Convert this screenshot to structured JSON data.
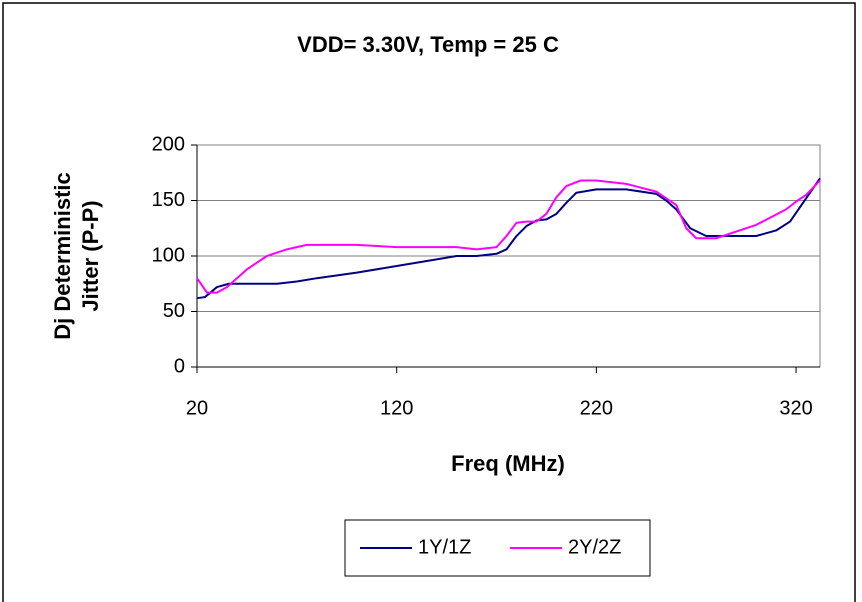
{
  "chart_data": {
    "type": "line",
    "title": "VDD= 3.30V, Temp = 25 C",
    "xlabel": "Freq (MHz)",
    "ylabel": [
      "Dj Deterministic",
      "Jitter (P-P)"
    ],
    "xlim": [
      20,
      332
    ],
    "xticks": [
      20,
      120,
      220,
      320
    ],
    "ylim": [
      0,
      200
    ],
    "yticks": [
      0,
      50,
      100,
      150,
      200
    ],
    "grid": true,
    "legend": "bottom",
    "series": [
      {
        "name": "1Y/1Z",
        "color": "#000080",
        "x": [
          20,
          24,
          30,
          36,
          50,
          60,
          70,
          80,
          100,
          120,
          140,
          150,
          160,
          170,
          175,
          180,
          185,
          190,
          195,
          200,
          205,
          210,
          220,
          235,
          250,
          255,
          260,
          267,
          275,
          290,
          300,
          310,
          317,
          332
        ],
        "values": [
          62,
          63,
          72,
          75,
          75,
          75,
          77,
          80,
          85,
          91,
          97,
          100,
          100,
          102,
          106,
          118,
          127,
          132,
          133,
          138,
          148,
          157,
          160,
          160,
          156,
          150,
          142,
          125,
          118,
          118,
          118,
          123,
          131,
          170
        ]
      },
      {
        "name": "2Y/2Z",
        "color": "#ff00ff",
        "x": [
          20,
          25,
          30,
          35,
          45,
          55,
          65,
          75,
          100,
          120,
          150,
          160,
          170,
          175,
          180,
          185,
          190,
          195,
          200,
          205,
          212,
          220,
          235,
          250,
          255,
          260,
          265,
          270,
          280,
          300,
          315,
          320,
          325,
          332
        ],
        "values": [
          80,
          67,
          67,
          72,
          88,
          100,
          106,
          110,
          110,
          108,
          108,
          106,
          108,
          118,
          130,
          131,
          131,
          138,
          153,
          163,
          168,
          168,
          165,
          158,
          152,
          146,
          125,
          116,
          116,
          128,
          142,
          149,
          155,
          168
        ]
      }
    ]
  }
}
